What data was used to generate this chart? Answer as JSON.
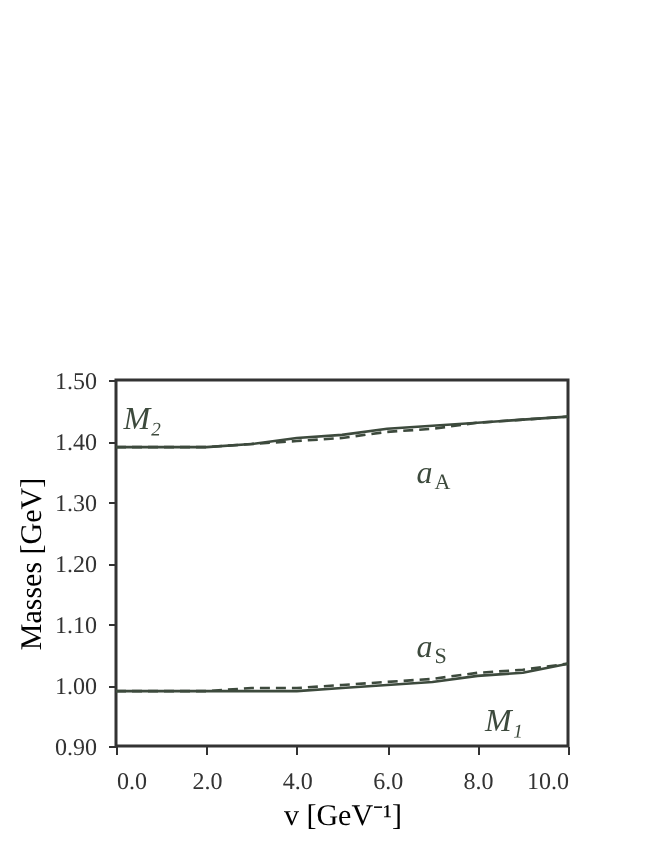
{
  "chart_data": {
    "type": "line",
    "xlabel": "v [GeV⁻¹]",
    "ylabel": "Masses [GeV]",
    "x": [
      0,
      1,
      2,
      3,
      4,
      5,
      6,
      7,
      8,
      9,
      10
    ],
    "series": [
      {
        "name": "M₂",
        "color": "#3d4a3d",
        "line_style": "solid",
        "values": [
          1.39,
          1.39,
          1.39,
          1.395,
          1.405,
          1.41,
          1.42,
          1.425,
          1.43,
          1.435,
          1.44
        ]
      },
      {
        "name": "a$_{A}$",
        "color": "#3d4a3d",
        "line_style": "dashed",
        "values": [
          1.39,
          1.39,
          1.39,
          1.395,
          1.4,
          1.405,
          1.415,
          1.42,
          1.43,
          1.435,
          1.44
        ]
      },
      {
        "name": "a$_{S}$",
        "color": "#3d4a3d",
        "line_style": "dashed",
        "values": [
          0.99,
          0.99,
          0.99,
          0.995,
          0.995,
          1.0,
          1.005,
          1.01,
          1.02,
          1.025,
          1.035
        ]
      },
      {
        "name": "M₁",
        "color": "#3d4a3d",
        "line_style": "solid",
        "values": [
          0.99,
          0.99,
          0.99,
          0.99,
          0.99,
          0.995,
          1.0,
          1.005,
          1.015,
          1.02,
          1.035
        ]
      }
    ],
    "xlim": [
      0,
      10
    ],
    "ylim": [
      0.9,
      1.5
    ],
    "xticks": [
      {
        "value": 0,
        "label": "0.0"
      },
      {
        "value": 2,
        "label": "2.0"
      },
      {
        "value": 4,
        "label": "4.0"
      },
      {
        "value": 6,
        "label": "6.0"
      },
      {
        "value": 8,
        "label": "8.0"
      },
      {
        "value": 10,
        "label": "10.0"
      }
    ],
    "yticks": [
      {
        "value": 0.9,
        "label": "0.90"
      },
      {
        "value": 1.0,
        "label": "1.00"
      },
      {
        "value": 1.1,
        "label": "1.10"
      },
      {
        "value": 1.2,
        "label": "1.20"
      },
      {
        "value": 1.3,
        "label": "1.30"
      },
      {
        "value": 1.4,
        "label": "1.40"
      },
      {
        "value": 1.5,
        "label": "1.50"
      }
    ],
    "grid": false
  }
}
